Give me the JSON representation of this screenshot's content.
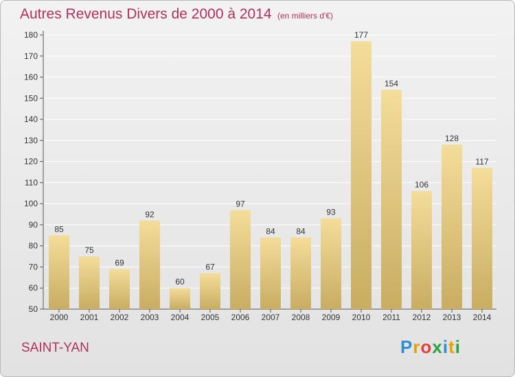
{
  "header": {
    "title": "Autres Revenus Divers de 2000 à 2014",
    "unit": "(en milliers d'€)"
  },
  "footer": {
    "place": "SAINT-YAN",
    "logo": {
      "letters": [
        "P",
        "r",
        "o",
        "x",
        "i",
        "t",
        "i"
      ],
      "colors": [
        "#2a8fd6",
        "#e8a000",
        "#e04040",
        "#2aa040",
        "#2a8fd6",
        "#e8a000",
        "#2aa040"
      ]
    }
  },
  "colors": {
    "bar_light": "#f4dc9a",
    "bar_dark": "#c8ad62",
    "title": "#b0305a",
    "grid": "#ffffff"
  },
  "chart_data": {
    "type": "bar",
    "categories": [
      "2000",
      "2001",
      "2002",
      "2003",
      "2004",
      "2005",
      "2006",
      "2007",
      "2008",
      "2009",
      "2010",
      "2011",
      "2012",
      "2013",
      "2014"
    ],
    "values": [
      85,
      75,
      69,
      92,
      60,
      67,
      97,
      84,
      84,
      93,
      177,
      154,
      106,
      128,
      117
    ],
    "title": "Autres Revenus Divers de 2000 à 2014",
    "subtitle": "(en milliers d'€)",
    "ylim": [
      50,
      180
    ],
    "yticks": [
      50,
      60,
      70,
      80,
      90,
      100,
      110,
      120,
      130,
      140,
      150,
      160,
      170,
      180
    ],
    "grid": true,
    "data_labels": true
  }
}
